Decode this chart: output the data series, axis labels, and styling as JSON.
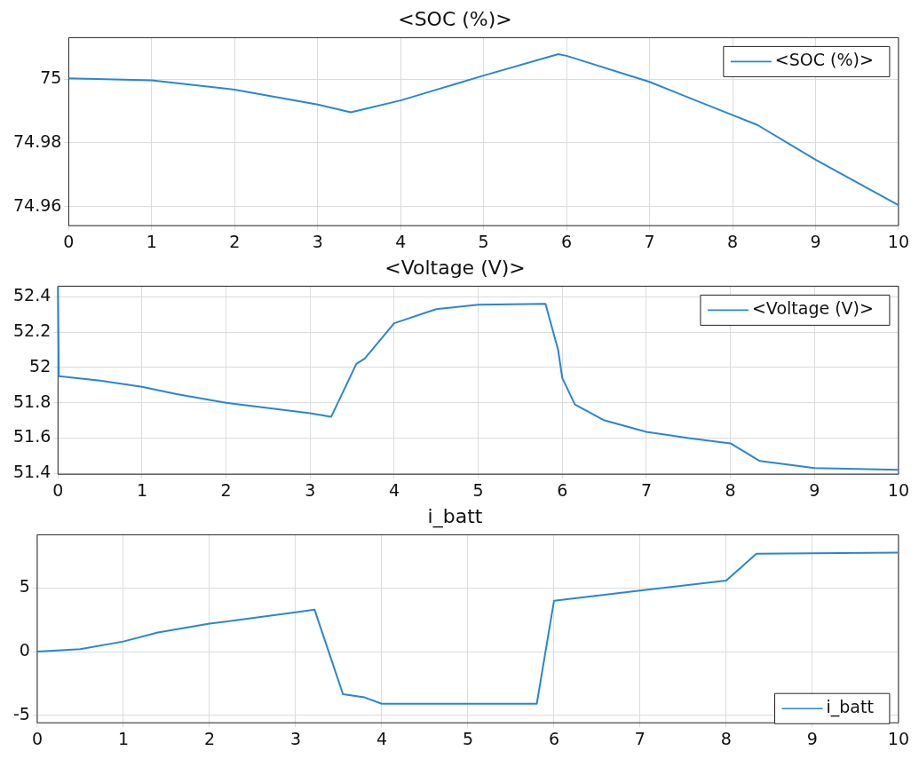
{
  "chart_data": [
    {
      "type": "line",
      "title": "<SOC (%)>",
      "xlim": [
        0,
        10
      ],
      "xticks": [
        0,
        1,
        2,
        3,
        4,
        5,
        6,
        7,
        8,
        9,
        10
      ],
      "ylim": [
        74.954,
        75.013
      ],
      "yticks": [
        74.96,
        74.98,
        75
      ],
      "grid": true,
      "legend": "top right",
      "series": [
        {
          "name": "<SOC (%)>",
          "color": "#2a86d0",
          "x": [
            0,
            1,
            2,
            3,
            3.4,
            4,
            5,
            5.9,
            6,
            7,
            8,
            8.3,
            9,
            10
          ],
          "values": [
            75.0002,
            74.9996,
            74.9967,
            74.992,
            74.9896,
            74.9933,
            75.0011,
            75.0078,
            75.0073,
            74.9991,
            74.9887,
            74.9856,
            74.9747,
            74.9604
          ]
        }
      ]
    },
    {
      "type": "line",
      "title": "<Voltage (V)>",
      "xlim": [
        0,
        10
      ],
      "xticks": [
        0,
        1,
        2,
        3,
        4,
        5,
        6,
        7,
        8,
        9,
        10
      ],
      "ylim": [
        51.395,
        52.46
      ],
      "yticks": [
        51.4,
        51.6,
        51.8,
        52,
        52.2,
        52.4
      ],
      "grid": true,
      "legend": "top right",
      "series": [
        {
          "name": "<Voltage (V)>",
          "color": "#2a86d0",
          "x": [
            0,
            0.01,
            0.5,
            1,
            1.4,
            2,
            3,
            3.25,
            3.55,
            3.65,
            4,
            4.5,
            5,
            5.8,
            5.95,
            6,
            6.15,
            6.5,
            7,
            7.5,
            8,
            8.35,
            9,
            10
          ],
          "values": [
            52.46,
            51.95,
            51.925,
            51.89,
            51.85,
            51.8,
            51.74,
            51.72,
            52.02,
            52.05,
            52.25,
            52.33,
            52.355,
            52.36,
            52.1,
            51.94,
            51.79,
            51.7,
            51.635,
            51.6,
            51.57,
            51.47,
            51.43,
            51.42
          ]
        }
      ]
    },
    {
      "type": "line",
      "title": "i_batt",
      "xlim": [
        0,
        10
      ],
      "xticks": [
        0,
        1,
        2,
        3,
        4,
        5,
        6,
        7,
        8,
        9,
        10
      ],
      "ylim": [
        -5.6,
        9.2
      ],
      "yticks": [
        -5,
        0,
        5
      ],
      "grid": true,
      "legend": "bottom right",
      "series": [
        {
          "name": "i_batt",
          "color": "#2a86d0",
          "x": [
            0,
            0.5,
            1,
            1.4,
            2,
            3,
            3.22,
            3.55,
            3.8,
            4,
            5.8,
            6,
            7,
            8,
            8.35,
            9,
            10
          ],
          "values": [
            0,
            0.2,
            0.8,
            1.5,
            2.2,
            3.1,
            3.3,
            -3.35,
            -3.6,
            -4.1,
            -4.1,
            4,
            4.8,
            5.6,
            7.7,
            7.75,
            7.8
          ]
        }
      ]
    }
  ]
}
